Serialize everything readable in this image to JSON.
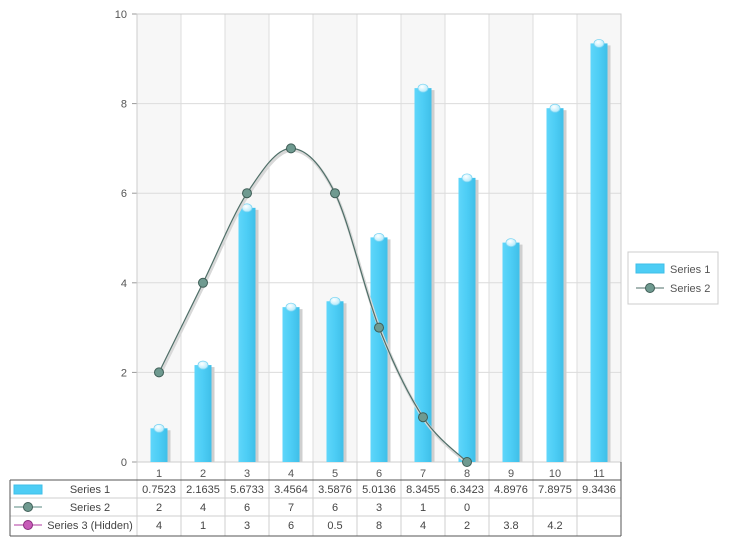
{
  "chart_data": {
    "type": "bar",
    "categories": [
      "1",
      "2",
      "3",
      "4",
      "5",
      "6",
      "7",
      "8",
      "9",
      "10",
      "11"
    ],
    "y_ticks": [
      "0",
      "2",
      "4",
      "6",
      "8",
      "10"
    ],
    "ylim": [
      0,
      10
    ],
    "grid": true,
    "legend_position": "right",
    "series": [
      {
        "name": "Series 1",
        "kind": "bar",
        "color": "#4dcdf5",
        "values": [
          0.7523,
          2.1635,
          5.6733,
          3.4564,
          3.5876,
          5.0136,
          8.3455,
          6.3423,
          4.8976,
          7.8975,
          9.3436
        ],
        "labels": [
          "0.7523",
          "2.1635",
          "5.6733",
          "3.4564",
          "3.5876",
          "5.0136",
          "8.3455",
          "6.3423",
          "4.8976",
          "7.8975",
          "9.3436"
        ]
      },
      {
        "name": "Series 2",
        "kind": "line",
        "color": "#5a8a80",
        "values": [
          2,
          4,
          6,
          7,
          6,
          3,
          1,
          0,
          null,
          null,
          null
        ],
        "labels": [
          "2",
          "4",
          "6",
          "7",
          "6",
          "3",
          "1",
          "0",
          "",
          "",
          ""
        ]
      },
      {
        "name": "Series 3 (Hidden)",
        "kind": "line",
        "hidden": true,
        "color": "#b03aa0",
        "values": [
          4,
          1,
          3,
          6,
          0.5,
          8,
          4,
          2,
          3.8,
          4.2,
          null
        ],
        "labels": [
          "4",
          "1",
          "3",
          "6",
          "0.5",
          "8",
          "4",
          "2",
          "3.8",
          "4.2",
          ""
        ]
      }
    ],
    "legend": [
      "Series 1",
      "Series 2"
    ]
  }
}
